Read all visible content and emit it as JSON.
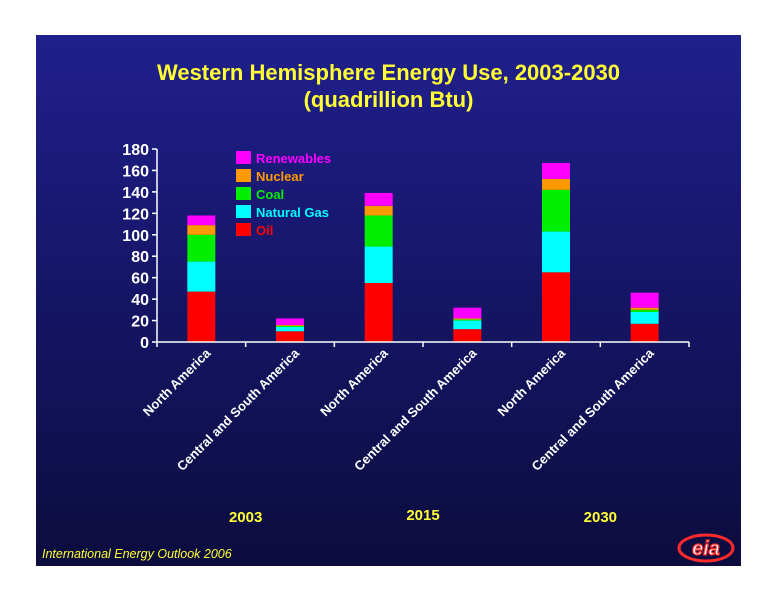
{
  "title_line1": "Western Hemisphere Energy Use, 2003-2030",
  "title_line2": "(quadrillion Btu)",
  "source": "International Energy Outlook 2006",
  "logo_text": "eia",
  "colors": {
    "Oil": "#ff0000",
    "Natural Gas": "#00ffff",
    "Coal": "#00ee00",
    "Nuclear": "#ff9900",
    "Renewables": "#ff00ff",
    "text": "#ffffff",
    "year_label": "#ffff33"
  },
  "chart_data": {
    "type": "bar",
    "stacked": true,
    "title": "Western Hemisphere Energy Use, 2003-2030",
    "subtitle": "(quadrillion Btu)",
    "ylim": [
      0,
      180
    ],
    "yticks": [
      0,
      20,
      40,
      60,
      80,
      100,
      120,
      140,
      160,
      180
    ],
    "groups": [
      "2003",
      "2015",
      "2030"
    ],
    "categories": [
      "North America",
      "Central and South America",
      "North America",
      "Central and South America",
      "North America",
      "Central and South America"
    ],
    "series": [
      {
        "name": "Oil",
        "values": [
          47,
          10,
          55,
          12,
          65,
          17
        ]
      },
      {
        "name": "Natural Gas",
        "values": [
          28,
          4,
          34,
          8,
          38,
          11
        ]
      },
      {
        "name": "Coal",
        "values": [
          25,
          1,
          29,
          1,
          39,
          2
        ]
      },
      {
        "name": "Nuclear",
        "values": [
          9,
          1,
          9,
          1,
          10,
          2
        ]
      },
      {
        "name": "Renewables",
        "values": [
          9,
          6,
          12,
          10,
          15,
          14
        ]
      }
    ],
    "legend_order": [
      "Renewables",
      "Nuclear",
      "Coal",
      "Natural Gas",
      "Oil"
    ],
    "legend_position": "top-left",
    "grid": false
  }
}
